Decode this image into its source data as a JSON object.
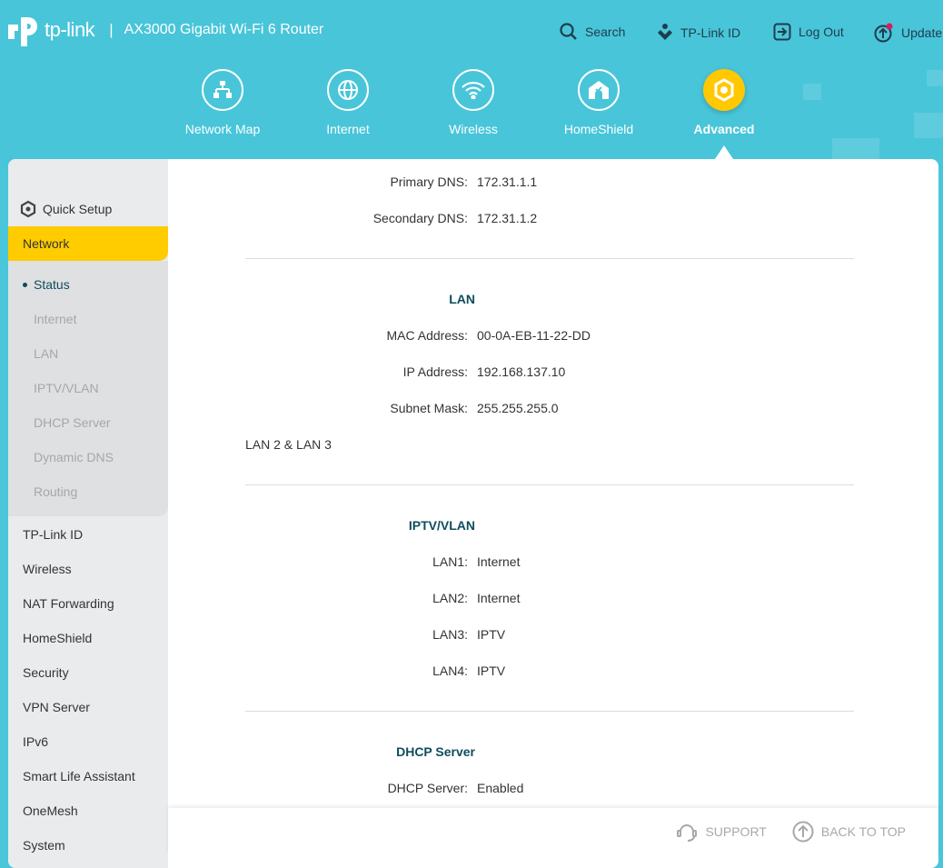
{
  "header": {
    "brand": "tp-link",
    "model": "AX3000 Gigabit Wi-Fi 6 Router",
    "top_links": [
      {
        "label": "Search",
        "icon": "search-icon"
      },
      {
        "label": "TP-Link ID",
        "icon": "tplink-id-icon"
      },
      {
        "label": "Log Out",
        "icon": "logout-icon"
      },
      {
        "label": "Update",
        "icon": "update-icon",
        "badge": true
      }
    ],
    "tabs": [
      {
        "label": "Network Map",
        "icon": "network-map-icon"
      },
      {
        "label": "Internet",
        "icon": "globe-icon"
      },
      {
        "label": "Wireless",
        "icon": "wifi-icon"
      },
      {
        "label": "HomeShield",
        "icon": "homeshield-icon"
      },
      {
        "label": "Advanced",
        "icon": "gear-icon",
        "active": true
      }
    ],
    "accent": "#FFCC00",
    "background": "#48C5D9"
  },
  "sidebar": {
    "quick_setup": "Quick Setup",
    "active_section": "Network",
    "sub_items": [
      "Status",
      "Internet",
      "LAN",
      "IPTV/VLAN",
      "DHCP Server",
      "Dynamic DNS",
      "Routing"
    ],
    "active_sub": "Status",
    "items": [
      "TP-Link ID",
      "Wireless",
      "NAT Forwarding",
      "HomeShield",
      "Security",
      "VPN Server",
      "IPv6",
      "Smart Life Assistant",
      "OneMesh",
      "System"
    ]
  },
  "content": {
    "internet": {
      "primary_dns_label": "Primary DNS:",
      "primary_dns": "172.31.1.1",
      "secondary_dns_label": "Secondary DNS:",
      "secondary_dns": "172.31.1.2"
    },
    "lan": {
      "title": "LAN",
      "mac_label": "MAC Address:",
      "mac": "00-0A-EB-11-22-DD",
      "ip_label": "IP Address:",
      "ip": "192.168.137.10",
      "mask_label": "Subnet Mask:",
      "mask": "255.255.255.0",
      "note": "LAN 2 & LAN 3"
    },
    "iptv": {
      "title": "IPTV/VLAN",
      "rows": [
        {
          "label": "LAN1:",
          "value": "Internet"
        },
        {
          "label": "LAN2:",
          "value": "Internet"
        },
        {
          "label": "LAN3:",
          "value": "IPTV"
        },
        {
          "label": "LAN4:",
          "value": "IPTV"
        }
      ]
    },
    "dhcp": {
      "title": "DHCP Server",
      "server_label": "DHCP Server:",
      "server": "Enabled"
    }
  },
  "footer": {
    "support": "SUPPORT",
    "back_to_top": "BACK TO TOP"
  }
}
